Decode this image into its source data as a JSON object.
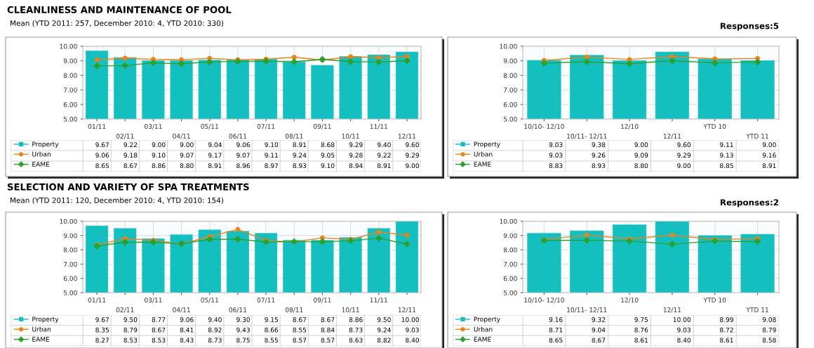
{
  "chart_data": [
    {
      "type": "bar",
      "title": "CLEANLINESS AND MAINTENANCE OF POOL",
      "subtitle": "Mean (YTD 2011: 257, December 2010: 4, YTD 2010: 330)",
      "categories": [
        "01/11",
        "02/11",
        "03/11",
        "04/11",
        "05/11",
        "06/11",
        "07/11",
        "08/11",
        "09/11",
        "10/11",
        "11/11",
        "12/11"
      ],
      "series": [
        {
          "name": "Property",
          "type": "bar",
          "color": "#13bfbf",
          "marker": "square",
          "values": [
            9.67,
            9.22,
            9.0,
            9.0,
            9.04,
            9.06,
            9.1,
            8.91,
            8.68,
            9.29,
            9.4,
            9.6
          ],
          "value_labels": [
            "9.67",
            "9.22",
            "9.00",
            "9.00",
            "9.04",
            "9.06",
            "9.10",
            "8.91",
            "8.68",
            "9.29",
            "9.40",
            "9.60"
          ]
        },
        {
          "name": "Urban",
          "type": "line",
          "color": "#e8841a",
          "marker": "circle",
          "values": [
            9.06,
            9.18,
            9.1,
            9.07,
            9.17,
            9.07,
            9.11,
            9.24,
            9.05,
            9.28,
            9.22,
            9.29
          ],
          "value_labels": [
            "9.06",
            "9.18",
            "9.10",
            "9.07",
            "9.17",
            "9.07",
            "9.11",
            "9.24",
            "9.05",
            "9.28",
            "9.22",
            "9.29"
          ]
        },
        {
          "name": "EAME",
          "type": "line",
          "color": "#2ca02c",
          "marker": "diamond",
          "values": [
            8.65,
            8.67,
            8.86,
            8.8,
            8.91,
            8.96,
            8.97,
            8.93,
            9.1,
            8.94,
            8.91,
            9.0
          ],
          "value_labels": [
            "8.65",
            "8.67",
            "8.86",
            "8.80",
            "8.91",
            "8.96",
            "8.97",
            "8.93",
            "9.10",
            "8.94",
            "8.91",
            "9.00"
          ]
        }
      ],
      "ylim": [
        5,
        10
      ],
      "yticks": [
        {
          "value": 5,
          "label": "5.00"
        },
        {
          "value": 6,
          "label": "6.00"
        },
        {
          "value": 7,
          "label": "7.00"
        },
        {
          "value": 8,
          "label": "8.00"
        },
        {
          "value": 9,
          "label": "9.00"
        },
        {
          "value": 10,
          "label": "10.00"
        }
      ],
      "grid": true,
      "legend": "bottom"
    },
    {
      "type": "bar",
      "annotations": [
        "Responses:5"
      ],
      "categories": [
        "10/10- 12/10",
        "10/11- 12/11",
        "12/10",
        "12/11",
        "YTD 10",
        "YTD 11"
      ],
      "series": [
        {
          "name": "Property",
          "type": "bar",
          "color": "#13bfbf",
          "marker": "square",
          "values": [
            9.03,
            9.38,
            9.0,
            9.6,
            9.11,
            9.0
          ],
          "value_labels": [
            "9.03",
            "9.38",
            "9.00",
            "9.60",
            "9.11",
            "9.00"
          ]
        },
        {
          "name": "Urban",
          "type": "line",
          "color": "#e8841a",
          "marker": "circle",
          "values": [
            9.03,
            9.26,
            9.09,
            9.29,
            9.13,
            9.16
          ],
          "value_labels": [
            "9.03",
            "9.26",
            "9.09",
            "9.29",
            "9.13",
            "9.16"
          ]
        },
        {
          "name": "EAME",
          "type": "line",
          "color": "#2ca02c",
          "marker": "diamond",
          "values": [
            8.83,
            8.93,
            8.8,
            9.0,
            8.85,
            8.91
          ],
          "value_labels": [
            "8.83",
            "8.93",
            "8.80",
            "9.00",
            "8.85",
            "8.91"
          ]
        }
      ],
      "ylim": [
        5,
        10
      ],
      "yticks": [
        {
          "value": 5,
          "label": "5.00"
        },
        {
          "value": 6,
          "label": "6.00"
        },
        {
          "value": 7,
          "label": "7.00"
        },
        {
          "value": 8,
          "label": "8.00"
        },
        {
          "value": 9,
          "label": "9.00"
        },
        {
          "value": 10,
          "label": "10.00"
        }
      ],
      "grid": true,
      "legend": "bottom"
    },
    {
      "type": "bar",
      "title": "SELECTION AND VARIETY OF SPA TREATMENTS",
      "subtitle": "Mean (YTD 2011: 120, December 2010: 4, YTD 2010: 154)",
      "categories": [
        "01/11",
        "02/11",
        "03/11",
        "04/11",
        "05/11",
        "06/11",
        "07/11",
        "08/11",
        "09/11",
        "10/11",
        "11/11",
        "12/11"
      ],
      "series": [
        {
          "name": "Property",
          "type": "bar",
          "color": "#13bfbf",
          "marker": "square",
          "values": [
            9.67,
            9.5,
            8.77,
            9.06,
            9.4,
            9.3,
            9.15,
            8.67,
            8.67,
            8.86,
            9.5,
            10.0
          ],
          "value_labels": [
            "9.67",
            "9.50",
            "8.77",
            "9.06",
            "9.40",
            "9.30",
            "9.15",
            "8.67",
            "8.67",
            "8.86",
            "9.50",
            "10.00"
          ]
        },
        {
          "name": "Urban",
          "type": "line",
          "color": "#e8841a",
          "marker": "circle",
          "values": [
            8.35,
            8.79,
            8.67,
            8.41,
            8.92,
            9.43,
            8.66,
            8.55,
            8.84,
            8.73,
            9.24,
            9.03
          ],
          "value_labels": [
            "8.35",
            "8.79",
            "8.67",
            "8.41",
            "8.92",
            "9.43",
            "8.66",
            "8.55",
            "8.84",
            "8.73",
            "9.24",
            "9.03"
          ]
        },
        {
          "name": "EAME",
          "type": "line",
          "color": "#2ca02c",
          "marker": "diamond",
          "values": [
            8.27,
            8.53,
            8.53,
            8.43,
            8.73,
            8.75,
            8.55,
            8.57,
            8.57,
            8.63,
            8.82,
            8.4
          ],
          "value_labels": [
            "8.27",
            "8.53",
            "8.53",
            "8.43",
            "8.73",
            "8.75",
            "8.55",
            "8.57",
            "8.57",
            "8.63",
            "8.82",
            "8.40"
          ]
        }
      ],
      "ylim": [
        5,
        10
      ],
      "yticks": [
        {
          "value": 5,
          "label": "5.00"
        },
        {
          "value": 6,
          "label": "6.00"
        },
        {
          "value": 7,
          "label": "7.00"
        },
        {
          "value": 8,
          "label": "8.00"
        },
        {
          "value": 9,
          "label": "9.00"
        },
        {
          "value": 10,
          "label": "10.00"
        }
      ],
      "grid": true,
      "legend": "bottom"
    },
    {
      "type": "bar",
      "annotations": [
        "Responses:2"
      ],
      "categories": [
        "10/10- 12/10",
        "10/11- 12/11",
        "12/10",
        "12/11",
        "YTD 10",
        "YTD 11"
      ],
      "series": [
        {
          "name": "Property",
          "type": "bar",
          "color": "#13bfbf",
          "marker": "square",
          "values": [
            9.16,
            9.32,
            9.75,
            10.0,
            8.99,
            9.08
          ],
          "value_labels": [
            "9.16",
            "9.32",
            "9.75",
            "10.00",
            "8.99",
            "9.08"
          ]
        },
        {
          "name": "Urban",
          "type": "line",
          "color": "#e8841a",
          "marker": "circle",
          "values": [
            8.71,
            9.04,
            8.76,
            9.03,
            8.72,
            8.79
          ],
          "value_labels": [
            "8.71",
            "9.04",
            "8.76",
            "9.03",
            "8.72",
            "8.79"
          ]
        },
        {
          "name": "EAME",
          "type": "line",
          "color": "#2ca02c",
          "marker": "diamond",
          "values": [
            8.65,
            8.67,
            8.61,
            8.4,
            8.61,
            8.58
          ],
          "value_labels": [
            "8.65",
            "8.67",
            "8.61",
            "8.40",
            "8.61",
            "8.58"
          ]
        }
      ],
      "ylim": [
        5,
        10
      ],
      "yticks": [
        {
          "value": 5,
          "label": "5.00"
        },
        {
          "value": 6,
          "label": "6.00"
        },
        {
          "value": 7,
          "label": "7.00"
        },
        {
          "value": 8,
          "label": "8.00"
        },
        {
          "value": 9,
          "label": "9.00"
        },
        {
          "value": 10,
          "label": "10.00"
        }
      ],
      "grid": true,
      "legend": "bottom"
    }
  ]
}
